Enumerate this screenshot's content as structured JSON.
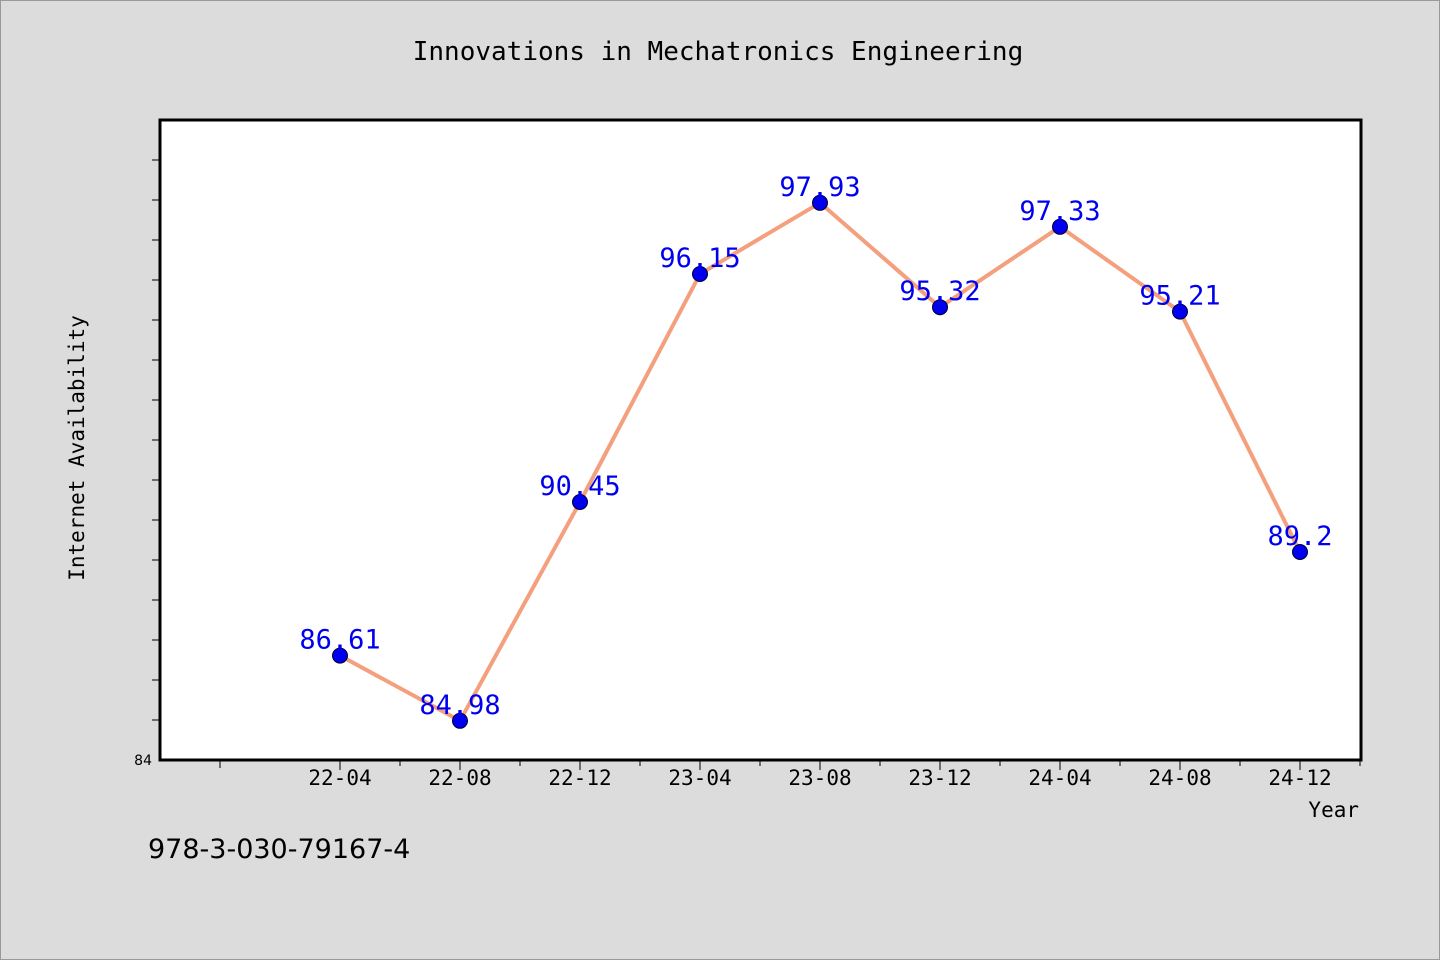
{
  "chart_data": {
    "type": "line",
    "title": "Innovations in Mechatronics Engineering",
    "xlabel": "Year",
    "ylabel": "Internet Availability",
    "categories": [
      "22-04",
      "22-08",
      "22-12",
      "23-04",
      "23-08",
      "23-12",
      "24-04",
      "24-08",
      "24-12"
    ],
    "series": [
      {
        "values": [
          86.61,
          84.98,
          90.45,
          96.15,
          97.93,
          95.32,
          97.33,
          95.21,
          89.2
        ],
        "line_color": "#f4a07e",
        "marker_color": "#0000ee",
        "label_color": "#0000ee"
      }
    ],
    "ylim": [
      84,
      100
    ],
    "y_tick_labels": [
      "84"
    ],
    "data_labels": [
      "86.61",
      "84.98",
      "90.45",
      "96.15",
      "97.93",
      "95.32",
      "97.33",
      "95.21",
      "89.2"
    ],
    "grid": false,
    "legend": "none"
  },
  "footer": {
    "isbn": "978-3-030-79167-4"
  },
  "colors": {
    "background": "#dcdcdc",
    "plot_background": "#ffffff",
    "axis": "#000000"
  }
}
